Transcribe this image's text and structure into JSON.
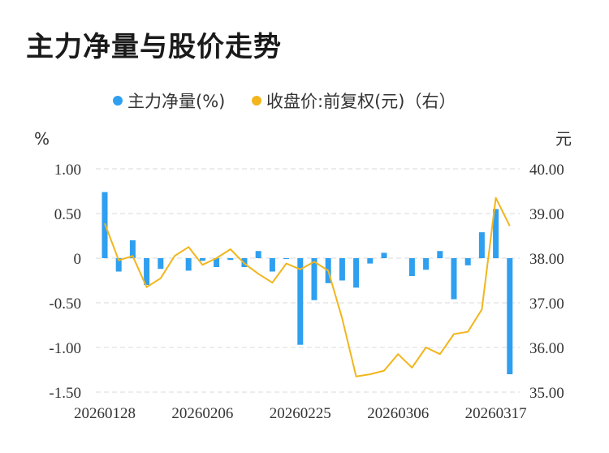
{
  "page": {
    "title": "主力净量与股价走势"
  },
  "legend": {
    "items": [
      {
        "label": "主力净量(%)",
        "color": "#2f9fef"
      },
      {
        "label": "收盘价:前复权(元)（右）",
        "color": "#f2b51c"
      }
    ]
  },
  "chart_data": {
    "type": "bar+line",
    "left_unit": "%",
    "right_unit": "元",
    "left_ticks": [
      "1.00",
      "0.50",
      "0",
      "-0.50",
      "-1.00",
      "-1.50"
    ],
    "right_ticks": [
      "40.00",
      "39.00",
      "38.00",
      "37.00",
      "36.00",
      "35.00"
    ],
    "left_range": [
      -1.5,
      1.0
    ],
    "right_range": [
      35.0,
      40.0
    ],
    "x_tick_labels": [
      "20260128",
      "20260206",
      "20260225",
      "20260306",
      "20260317"
    ],
    "x_tick_positions": [
      0,
      7,
      14,
      21,
      28
    ],
    "grid": true,
    "series": [
      {
        "name": "主力净量(%)",
        "kind": "bar",
        "axis": "left",
        "color": "#2f9fef",
        "values": [
          0.74,
          -0.15,
          0.2,
          -0.3,
          -0.12,
          0.0,
          -0.14,
          -0.03,
          -0.1,
          -0.02,
          -0.1,
          0.08,
          -0.15,
          -0.01,
          -0.97,
          -0.47,
          -0.28,
          -0.25,
          -0.33,
          -0.06,
          0.06,
          0.0,
          -0.2,
          -0.13,
          0.08,
          -0.46,
          -0.08,
          0.29,
          0.55,
          -1.3
        ]
      },
      {
        "name": "收盘价:前复权(元)（右）",
        "kind": "line",
        "axis": "right",
        "color": "#f2b51c",
        "values": [
          38.78,
          37.95,
          38.05,
          37.35,
          37.55,
          38.05,
          38.25,
          37.85,
          38.0,
          38.2,
          37.88,
          37.65,
          37.45,
          37.88,
          37.75,
          37.92,
          37.72,
          36.65,
          35.35,
          35.4,
          35.48,
          35.85,
          35.55,
          36.0,
          35.85,
          36.3,
          36.35,
          36.85,
          39.35,
          38.72
        ]
      }
    ]
  }
}
